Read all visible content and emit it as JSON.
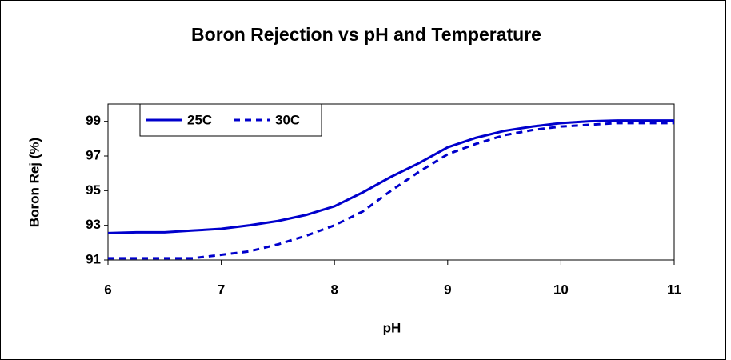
{
  "chart_data": {
    "type": "line",
    "title": "Boron Rejection vs pH and Temperature",
    "xlabel": "pH",
    "ylabel": "Boron Rej (%)",
    "x": [
      6,
      6.25,
      6.5,
      6.75,
      7,
      7.25,
      7.5,
      7.75,
      8,
      8.25,
      8.5,
      8.75,
      9,
      9.25,
      9.5,
      9.75,
      10,
      10.25,
      10.5,
      10.75,
      11
    ],
    "series": [
      {
        "name": "25C",
        "color": "#0000cc",
        "dash": false,
        "values": [
          92.55,
          92.6,
          92.6,
          92.7,
          92.8,
          93.0,
          93.25,
          93.6,
          94.1,
          94.9,
          95.8,
          96.6,
          97.5,
          98.05,
          98.45,
          98.7,
          98.9,
          99.0,
          99.05,
          99.05,
          99.05
        ]
      },
      {
        "name": "30C",
        "color": "#0000cc",
        "dash": true,
        "values": [
          91.1,
          91.1,
          91.1,
          91.1,
          91.3,
          91.5,
          91.9,
          92.4,
          93.0,
          93.8,
          95.0,
          96.1,
          97.1,
          97.7,
          98.2,
          98.5,
          98.7,
          98.8,
          98.9,
          98.9,
          98.9
        ]
      }
    ],
    "xlim": [
      6,
      11
    ],
    "xticks": [
      6,
      7,
      8,
      9,
      10,
      11
    ],
    "ylim": [
      91,
      100
    ],
    "yticks": [
      91,
      93,
      95,
      97,
      99
    ],
    "legend": "top-left"
  }
}
